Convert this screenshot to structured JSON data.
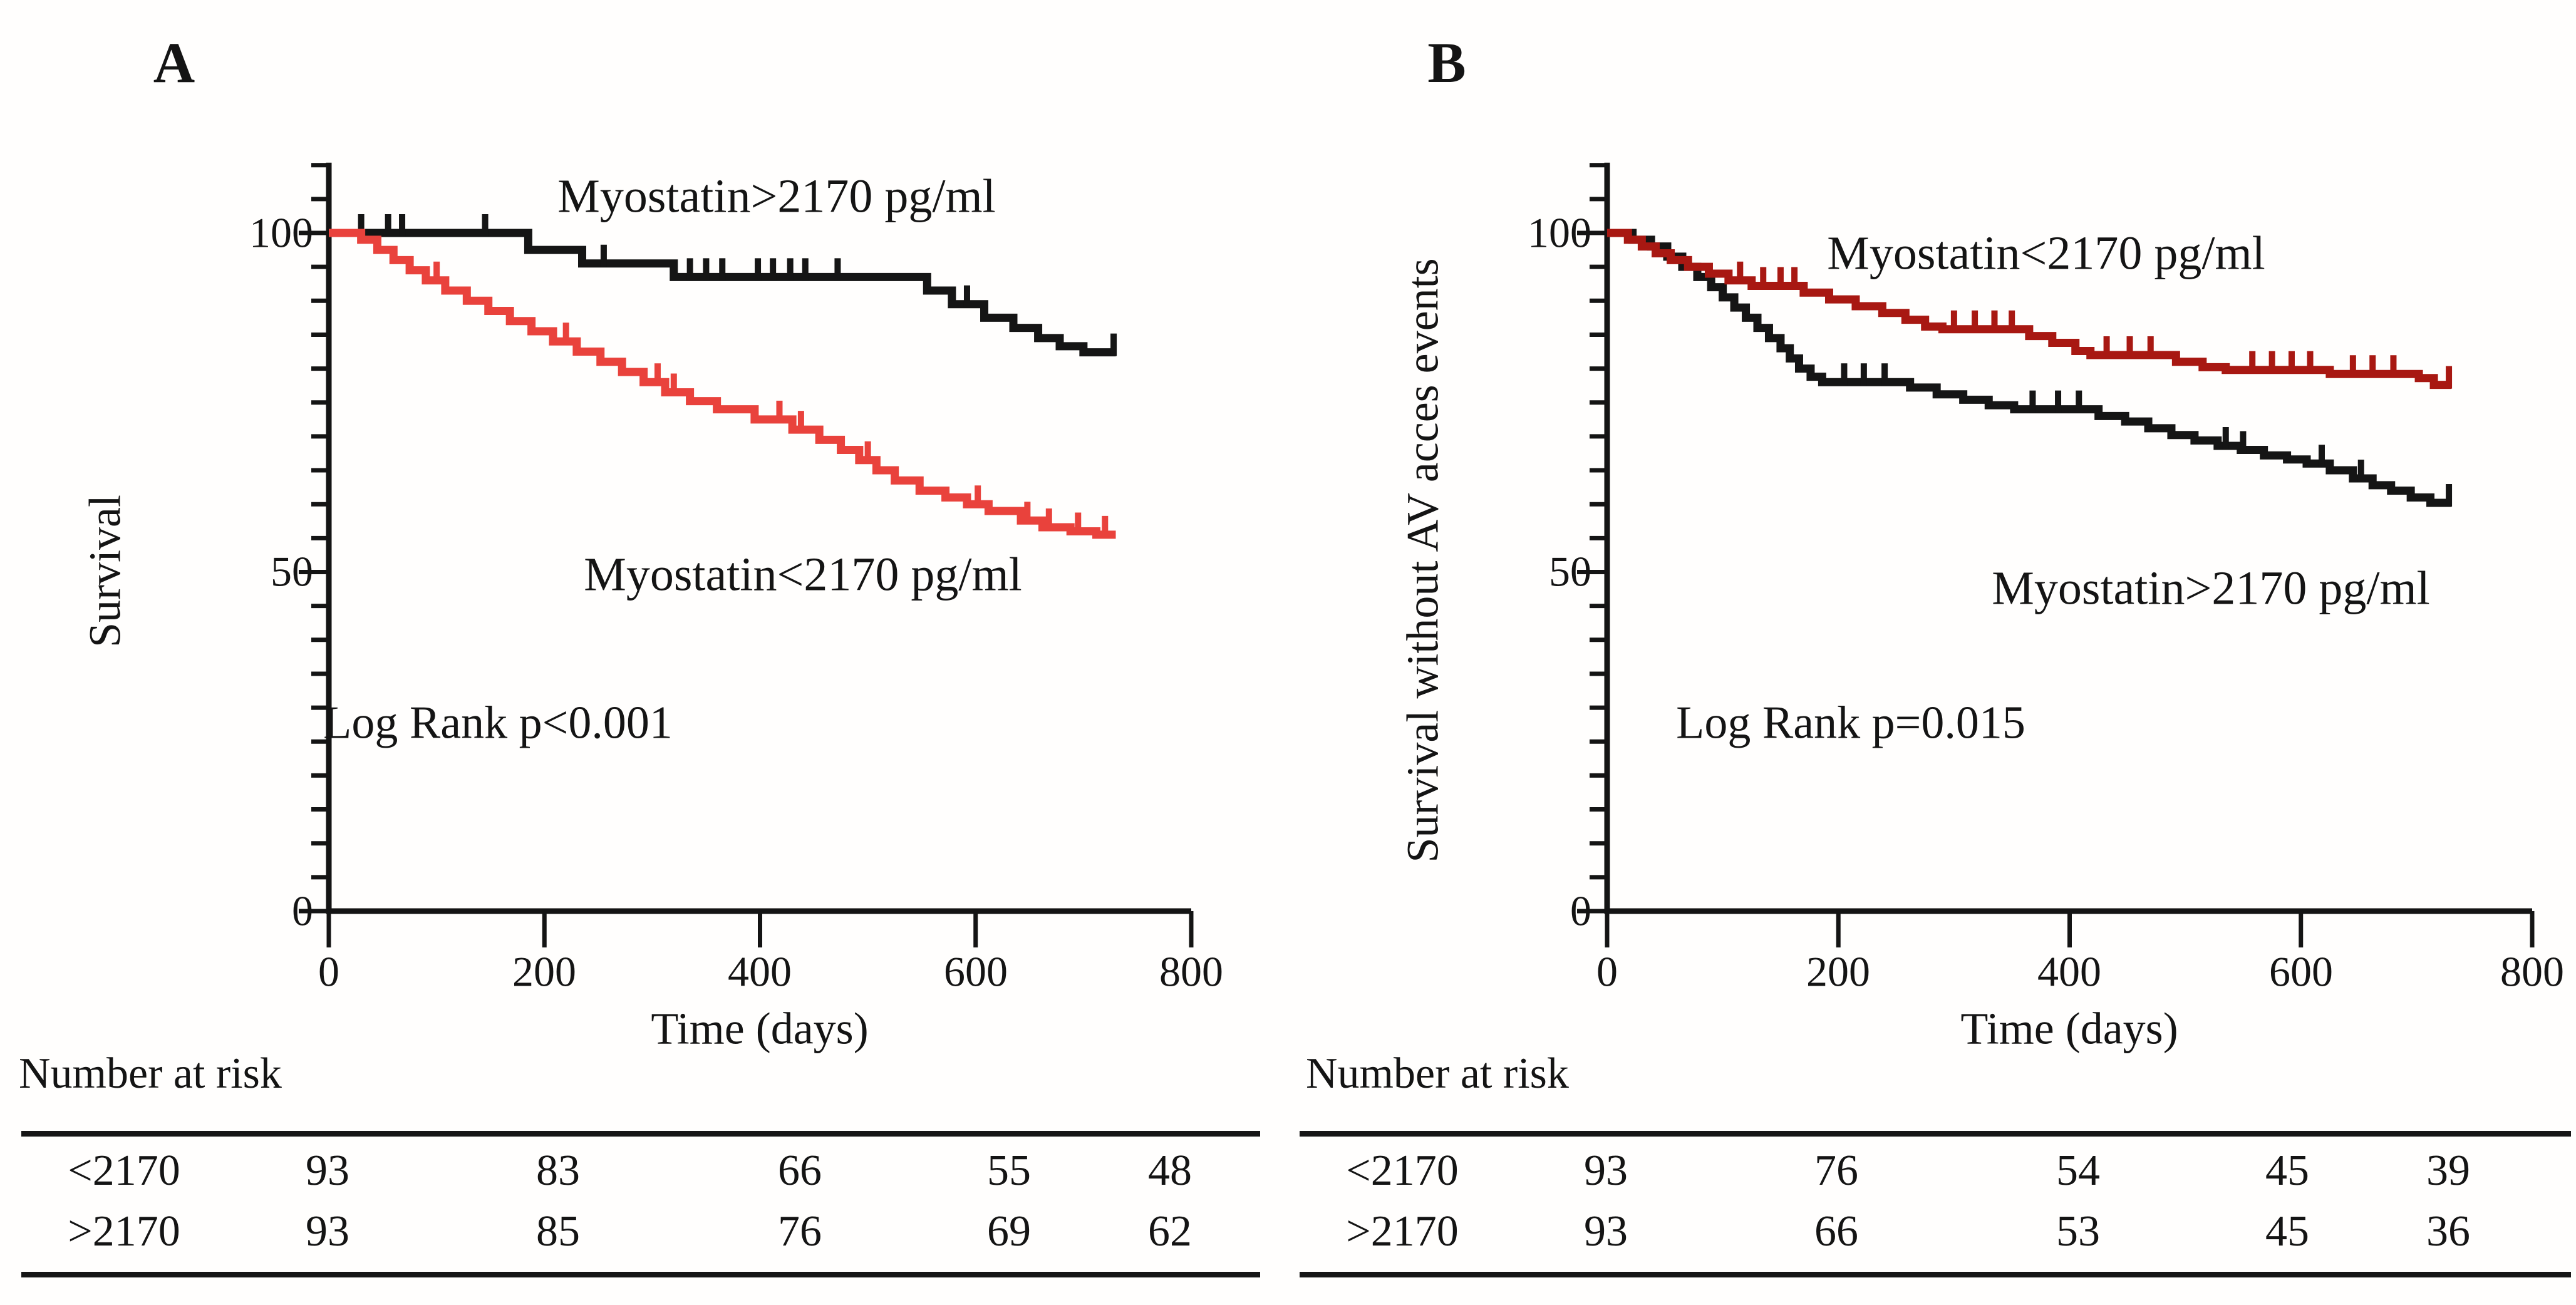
{
  "chart_data": [
    {
      "type": "line",
      "subtype": "kaplan-meier-step",
      "panel_label": "A",
      "title": "",
      "xlabel": "Time (days)",
      "ylabel": "Survival",
      "xlim": [
        0,
        800
      ],
      "ylim": [
        0,
        110
      ],
      "xticks": [
        0,
        200,
        400,
        600,
        800
      ],
      "yticks": [
        0,
        50,
        100
      ],
      "y_minor_step": 5,
      "grid": false,
      "legend_position": "inline-annotations",
      "annotation": "Log Rank p<0.001",
      "series": [
        {
          "name": "Myostatin>2170 pg/ml",
          "color": "#151515",
          "z": 1,
          "end_day": 730,
          "steps": [
            [
              0,
              100
            ],
            [
              185,
              97.5
            ],
            [
              235,
              95.5
            ],
            [
              320,
              93.5
            ],
            [
              555,
              91.5
            ],
            [
              578,
              89.5
            ],
            [
              608,
              87.5
            ],
            [
              635,
              86
            ],
            [
              658,
              84.5
            ],
            [
              678,
              83.3
            ],
            [
              700,
              82.4
            ]
          ],
          "censors": [
            [
              30,
              100
            ],
            [
              55,
              100
            ],
            [
              68,
              100
            ],
            [
              145,
              100
            ],
            [
              255,
              95.5
            ],
            [
              335,
              93.5
            ],
            [
              350,
              93.5
            ],
            [
              365,
              93.5
            ],
            [
              398,
              93.5
            ],
            [
              412,
              93.5
            ],
            [
              428,
              93.5
            ],
            [
              442,
              93.5
            ],
            [
              472,
              93.5
            ],
            [
              592,
              89.5
            ],
            [
              728,
              82.4
            ]
          ]
        },
        {
          "name": "Myostatin<2170 pg/ml",
          "color": "#e9423c",
          "z": 2,
          "end_day": 730,
          "steps": [
            [
              0,
              100
            ],
            [
              30,
              99
            ],
            [
              45,
              97.5
            ],
            [
              60,
              96
            ],
            [
              75,
              94.5
            ],
            [
              90,
              93
            ],
            [
              108,
              91.5
            ],
            [
              128,
              90
            ],
            [
              148,
              88.5
            ],
            [
              168,
              87
            ],
            [
              188,
              85.5
            ],
            [
              208,
              84
            ],
            [
              230,
              82.5
            ],
            [
              252,
              81
            ],
            [
              272,
              79.5
            ],
            [
              292,
              78
            ],
            [
              312,
              76.5
            ],
            [
              335,
              75.2
            ],
            [
              360,
              74
            ],
            [
              395,
              72.5
            ],
            [
              430,
              71
            ],
            [
              455,
              69.5
            ],
            [
              475,
              68
            ],
            [
              492,
              66.5
            ],
            [
              508,
              65
            ],
            [
              525,
              63.5
            ],
            [
              548,
              62
            ],
            [
              572,
              61
            ],
            [
              592,
              60
            ],
            [
              612,
              59
            ],
            [
              642,
              57.6
            ],
            [
              662,
              56.6
            ],
            [
              688,
              56
            ],
            [
              712,
              55.5
            ]
          ],
          "censors": [
            [
              100,
              93
            ],
            [
              220,
              84
            ],
            [
              305,
              78
            ],
            [
              320,
              76.5
            ],
            [
              418,
              72.5
            ],
            [
              438,
              71
            ],
            [
              500,
              66.5
            ],
            [
              602,
              60
            ],
            [
              648,
              57.6
            ],
            [
              668,
              56.6
            ],
            [
              695,
              56
            ],
            [
              720,
              55.5
            ]
          ]
        }
      ],
      "number_at_risk": {
        "header": "Number at risk",
        "rows": [
          {
            "label": "<2170",
            "values": [
              93,
              83,
              66,
              55,
              48
            ]
          },
          {
            "label": ">2170",
            "values": [
              93,
              85,
              76,
              69,
              62
            ]
          }
        ]
      }
    },
    {
      "type": "line",
      "subtype": "kaplan-meier-step",
      "panel_label": "B",
      "title": "",
      "xlabel": "Time (days)",
      "ylabel": "Survival without AV acces events",
      "xlim": [
        0,
        800
      ],
      "ylim": [
        0,
        110
      ],
      "xticks": [
        0,
        200,
        400,
        600,
        800
      ],
      "yticks": [
        0,
        50,
        100
      ],
      "y_minor_step": 5,
      "grid": false,
      "legend_position": "inline-annotations",
      "annotation": "Log Rank p=0.015",
      "series": [
        {
          "name": "Myostatin<2170 pg/ml",
          "color": "#a81812",
          "z": 2,
          "end_day": 730,
          "steps": [
            [
              0,
              100
            ],
            [
              18,
              99
            ],
            [
              30,
              98
            ],
            [
              42,
              97
            ],
            [
              55,
              96
            ],
            [
              70,
              95
            ],
            [
              88,
              94
            ],
            [
              105,
              93
            ],
            [
              125,
              92.2
            ],
            [
              170,
              91.2
            ],
            [
              192,
              90.2
            ],
            [
              215,
              89.2
            ],
            [
              238,
              88.2
            ],
            [
              258,
              87.2
            ],
            [
              275,
              86.2
            ],
            [
              290,
              85.8
            ],
            [
              365,
              84.8
            ],
            [
              385,
              83.8
            ],
            [
              405,
              82.6
            ],
            [
              418,
              82
            ],
            [
              492,
              81
            ],
            [
              515,
              80.2
            ],
            [
              535,
              79.8
            ],
            [
              625,
              79.2
            ],
            [
              702,
              78.6
            ],
            [
              715,
              77.6
            ]
          ],
          "censors": [
            [
              115,
              93
            ],
            [
              135,
              92.2
            ],
            [
              150,
              92.2
            ],
            [
              162,
              92.2
            ],
            [
              300,
              85.8
            ],
            [
              318,
              85.8
            ],
            [
              335,
              85.8
            ],
            [
              350,
              85.8
            ],
            [
              432,
              82
            ],
            [
              452,
              82
            ],
            [
              470,
              82
            ],
            [
              558,
              79.8
            ],
            [
              575,
              79.8
            ],
            [
              592,
              79.8
            ],
            [
              608,
              79.8
            ],
            [
              645,
              79.2
            ],
            [
              662,
              79.2
            ],
            [
              680,
              79.2
            ],
            [
              728,
              77.6
            ]
          ]
        },
        {
          "name": "Myostatin>2170 pg/ml",
          "color": "#151515",
          "z": 1,
          "end_day": 730,
          "steps": [
            [
              0,
              100
            ],
            [
              22,
              99
            ],
            [
              38,
              98
            ],
            [
              52,
              96.5
            ],
            [
              65,
              95
            ],
            [
              78,
              93.5
            ],
            [
              90,
              92
            ],
            [
              100,
              90.5
            ],
            [
              110,
              89
            ],
            [
              120,
              87.5
            ],
            [
              130,
              86
            ],
            [
              140,
              84.5
            ],
            [
              150,
              83
            ],
            [
              158,
              81.5
            ],
            [
              166,
              80
            ],
            [
              176,
              78.8
            ],
            [
              186,
              78
            ],
            [
              262,
              77.2
            ],
            [
              285,
              76.2
            ],
            [
              308,
              75.4
            ],
            [
              330,
              74.6
            ],
            [
              352,
              74
            ],
            [
              425,
              73
            ],
            [
              448,
              72.2
            ],
            [
              468,
              71.2
            ],
            [
              488,
              70.2
            ],
            [
              508,
              69.4
            ],
            [
              528,
              68.6
            ],
            [
              548,
              68
            ],
            [
              568,
              67.2
            ],
            [
              588,
              66.6
            ],
            [
              605,
              66
            ],
            [
              625,
              65
            ],
            [
              645,
              63.8
            ],
            [
              662,
              62.8
            ],
            [
              678,
              62
            ],
            [
              695,
              61
            ],
            [
              712,
              60.2
            ]
          ],
          "censors": [
            [
              205,
              78
            ],
            [
              222,
              78
            ],
            [
              240,
              78
            ],
            [
              368,
              74
            ],
            [
              390,
              74
            ],
            [
              408,
              74
            ],
            [
              535,
              68.6
            ],
            [
              550,
              68
            ],
            [
              618,
              66
            ],
            [
              652,
              63.8
            ],
            [
              728,
              60.2
            ]
          ]
        }
      ],
      "number_at_risk": {
        "header": "Number at risk",
        "rows": [
          {
            "label": "<2170",
            "values": [
              93,
              76,
              54,
              45,
              39
            ]
          },
          {
            "label": ">2170",
            "values": [
              93,
              66,
              53,
              45,
              36
            ]
          }
        ]
      }
    }
  ]
}
